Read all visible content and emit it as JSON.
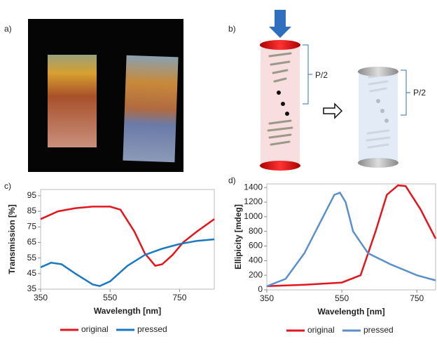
{
  "panels": {
    "a": "a)",
    "b": "b)",
    "pitch_left": "P/2",
    "pitch_right": "P/2"
  },
  "chart_data": [
    {
      "type": "line",
      "panel": "c)",
      "xlabel": "Wavelength [nm]",
      "ylabel": "Transmission [%]",
      "xlim": [
        350,
        850
      ],
      "xticks": [
        350,
        550,
        750
      ],
      "ylim": [
        35,
        99
      ],
      "yticks": [
        35,
        45,
        55,
        65,
        75,
        85,
        95
      ],
      "series": [
        {
          "name": "original",
          "color": "#e3161e",
          "x": [
            350,
            400,
            450,
            500,
            550,
            580,
            620,
            650,
            680,
            700,
            730,
            760,
            800,
            850
          ],
          "values": [
            80,
            85,
            87,
            88,
            88,
            86,
            72,
            58,
            50,
            51,
            57,
            65,
            72,
            80
          ]
        },
        {
          "name": "pressed",
          "color": "#1a78c2",
          "x": [
            350,
            380,
            410,
            450,
            500,
            520,
            550,
            600,
            650,
            700,
            750,
            800,
            850
          ],
          "values": [
            49,
            52,
            51,
            45,
            38,
            37,
            40,
            50,
            57,
            61,
            64,
            66,
            67
          ]
        }
      ]
    },
    {
      "type": "line",
      "panel": "d)",
      "xlabel": "Wavelength [nm]",
      "ylabel": "Ellipicity [mdeg]",
      "xlim": [
        350,
        800
      ],
      "xticks": [
        350,
        550,
        750
      ],
      "ylim": [
        0,
        1450
      ],
      "yticks": [
        0,
        200,
        400,
        600,
        800,
        1000,
        1200,
        1400
      ],
      "series": [
        {
          "name": "original",
          "color": "#e3161e",
          "x": [
            350,
            450,
            550,
            600,
            640,
            670,
            700,
            720,
            760,
            800
          ],
          "values": [
            50,
            70,
            100,
            200,
            800,
            1300,
            1430,
            1420,
            1100,
            700
          ]
        },
        {
          "name": "pressed",
          "color": "#5b8fc9",
          "x": [
            350,
            400,
            450,
            500,
            530,
            545,
            560,
            580,
            620,
            680,
            750,
            800
          ],
          "values": [
            50,
            150,
            500,
            1000,
            1300,
            1330,
            1200,
            800,
            500,
            350,
            200,
            130
          ]
        }
      ]
    }
  ]
}
